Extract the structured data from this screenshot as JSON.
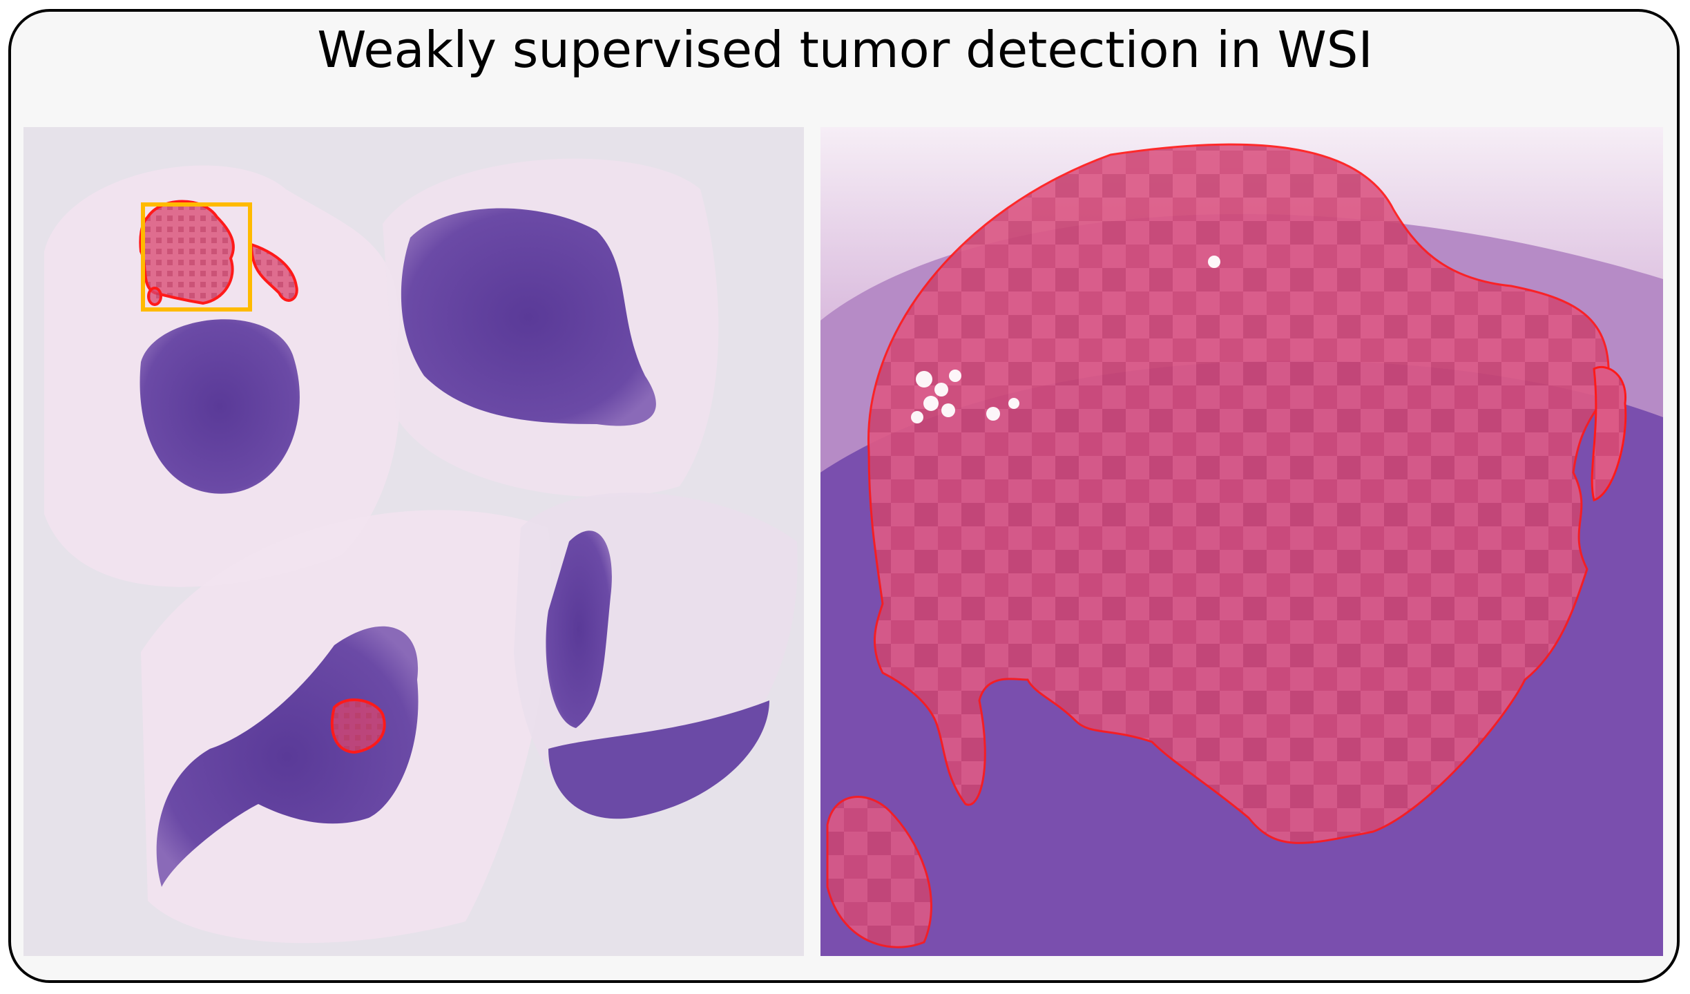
{
  "title": "Weakly supervised tumor detection in WSI",
  "colors": {
    "tumor_outline": "#ff1a1a",
    "zoom_box": "#ffba00",
    "tumor_overlay": "#e0406a",
    "tissue_dark": "#5e3c9a",
    "tissue_light": "#f0d8ea",
    "background": "#e6e2ea"
  },
  "panels": [
    {
      "name": "whole-slide-overview"
    },
    {
      "name": "zoomed-tumor-region"
    }
  ]
}
